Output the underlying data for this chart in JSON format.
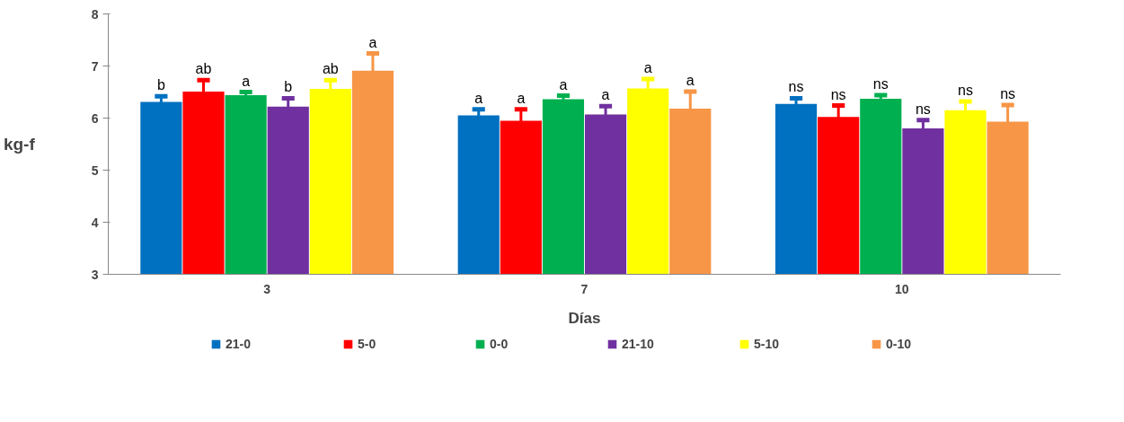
{
  "chart_data": {
    "type": "bar",
    "xlabel": "Días",
    "ylabel": "kg-f",
    "categories": [
      "3",
      "7",
      "10"
    ],
    "ylim": [
      3,
      8
    ],
    "yticks": [
      3,
      4,
      5,
      6,
      7,
      8
    ],
    "grid": false,
    "legend": "bottom",
    "series": [
      {
        "name": "21-0",
        "color": "#0070c0",
        "values": [
          6.31,
          6.05,
          6.27
        ],
        "errors": [
          0.11,
          0.12,
          0.11
        ],
        "value_labels": [
          "b",
          "a",
          "ns"
        ]
      },
      {
        "name": "5-0",
        "color": "#ff0000",
        "values": [
          6.51,
          5.95,
          6.02
        ],
        "errors": [
          0.22,
          0.22,
          0.22
        ],
        "value_labels": [
          "ab",
          "a",
          "ns"
        ]
      },
      {
        "name": "0-0",
        "color": "#00b050",
        "values": [
          6.44,
          6.36,
          6.37
        ],
        "errors": [
          0.06,
          0.07,
          0.07
        ],
        "value_labels": [
          "a",
          "a",
          "ns"
        ]
      },
      {
        "name": "21-10",
        "color": "#7030a0",
        "values": [
          6.22,
          6.07,
          5.8
        ],
        "errors": [
          0.16,
          0.16,
          0.16
        ],
        "value_labels": [
          "b",
          "a",
          "ns"
        ]
      },
      {
        "name": "5-10",
        "color": "#ffff00",
        "values": [
          6.56,
          6.57,
          6.15
        ],
        "errors": [
          0.17,
          0.18,
          0.17
        ],
        "value_labels": [
          "ab",
          "a",
          "ns"
        ]
      },
      {
        "name": "0-10",
        "color": "#f79646",
        "values": [
          6.91,
          6.18,
          5.93
        ],
        "errors": [
          0.33,
          0.33,
          0.32
        ],
        "value_labels": [
          "a",
          "a",
          "ns"
        ]
      }
    ]
  }
}
